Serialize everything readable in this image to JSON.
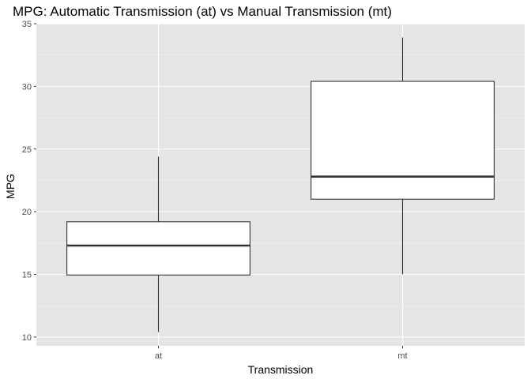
{
  "chart_data": {
    "type": "boxplot",
    "title": "MPG: Automatic Transmission (at) vs Manual Transmission (mt)",
    "xlabel": "Transmission",
    "ylabel": "MPG",
    "categories": [
      "at",
      "mt"
    ],
    "ylim": [
      9.3,
      35.0
    ],
    "yticks": [
      10,
      15,
      20,
      25,
      30,
      35
    ],
    "boxes": [
      {
        "category": "at",
        "min": 10.4,
        "q1": 14.95,
        "median": 17.3,
        "q3": 19.2,
        "max": 24.4
      },
      {
        "category": "mt",
        "min": 15.0,
        "q1": 21.0,
        "median": 22.8,
        "q3": 30.4,
        "max": 33.9
      }
    ],
    "grid": true,
    "colors": {
      "panel": "#e5e5e5",
      "grid_major": "#ffffff",
      "grid_minor": "#f2f2f2",
      "box_fill": "#ffffff",
      "box_stroke": "#333333"
    }
  }
}
